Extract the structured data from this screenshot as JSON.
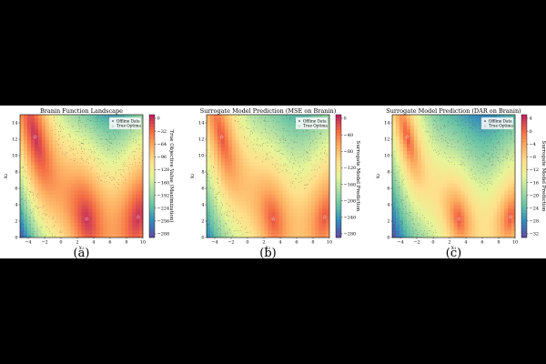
{
  "chart_data": [
    {
      "type": "heatmap",
      "title": "Branin Function Landscape",
      "xlabel": "x₁",
      "ylabel": "x₂",
      "xlim": [
        -5,
        10
      ],
      "ylim": [
        0,
        15
      ],
      "xticks": [
        "−4",
        "−2",
        "0",
        "2",
        "4",
        "6",
        "8",
        "10"
      ],
      "yticks": [
        "0",
        "2",
        "4",
        "6",
        "8",
        "10",
        "12",
        "14"
      ],
      "colorbar_label": "True Objective Value (Maximization)",
      "colorbar_ticks": [
        "0",
        "−32",
        "−64",
        "−96",
        "−128",
        "−160",
        "−192",
        "−224",
        "−256",
        "−288"
      ],
      "legend": [
        "Offline Data",
        "True Optima"
      ],
      "legend_position": "top-right",
      "optima": [
        [
          -3.14,
          12.275
        ],
        [
          3.14,
          2.275
        ],
        [
          9.42,
          2.475
        ]
      ],
      "sublabel": "(a)"
    },
    {
      "type": "heatmap",
      "title": "Surrogate Model Prediction (MSE on Branin)",
      "xlabel": "x₁",
      "ylabel": "x₂",
      "xlim": [
        -5,
        10
      ],
      "ylim": [
        0,
        15
      ],
      "xticks": [
        "−4",
        "−2",
        "0",
        "2",
        "4",
        "6",
        "8",
        "10"
      ],
      "yticks": [
        "0",
        "2",
        "4",
        "6",
        "8",
        "10",
        "12",
        "14"
      ],
      "colorbar_label": "Surrogate Model Prediction",
      "colorbar_ticks": [
        "0",
        "−40",
        "−80",
        "−120",
        "−160",
        "−200",
        "−240",
        "−280"
      ],
      "legend": [
        "Offline Data",
        "True Optima"
      ],
      "legend_position": "top-right",
      "optima": [
        [
          -3.14,
          12.275
        ],
        [
          3.14,
          2.275
        ],
        [
          9.42,
          2.475
        ]
      ],
      "sublabel": "(b)"
    },
    {
      "type": "heatmap",
      "title": "Surrogate Model Prediction (DAR on Branin)",
      "xlabel": "x₁",
      "ylabel": "x₂",
      "xlim": [
        -5,
        10
      ],
      "ylim": [
        0,
        15
      ],
      "xticks": [
        "−4",
        "−2",
        "0",
        "2",
        "4",
        "6",
        "8",
        "10"
      ],
      "yticks": [
        "0",
        "2",
        "4",
        "6",
        "8",
        "10",
        "12",
        "14"
      ],
      "colorbar_label": "Surrogate Model Prediction",
      "colorbar_ticks": [
        "4",
        "0",
        "−4",
        "−8",
        "−12",
        "−16",
        "−20",
        "−24",
        "−28",
        "−32"
      ],
      "legend": [
        "Offline Data",
        "True Optima"
      ],
      "legend_position": "top-right",
      "optima": [
        [
          -3.14,
          12.275
        ],
        [
          3.14,
          2.275
        ],
        [
          9.42,
          2.475
        ]
      ],
      "sublabel": "(c)"
    }
  ],
  "colors": {
    "colormap": "Spectral",
    "high": "#c0265e",
    "mid": "#fbe38e",
    "low": "#5e4fa2",
    "data_points": "#222222",
    "optima_marker": "#ffffff"
  }
}
